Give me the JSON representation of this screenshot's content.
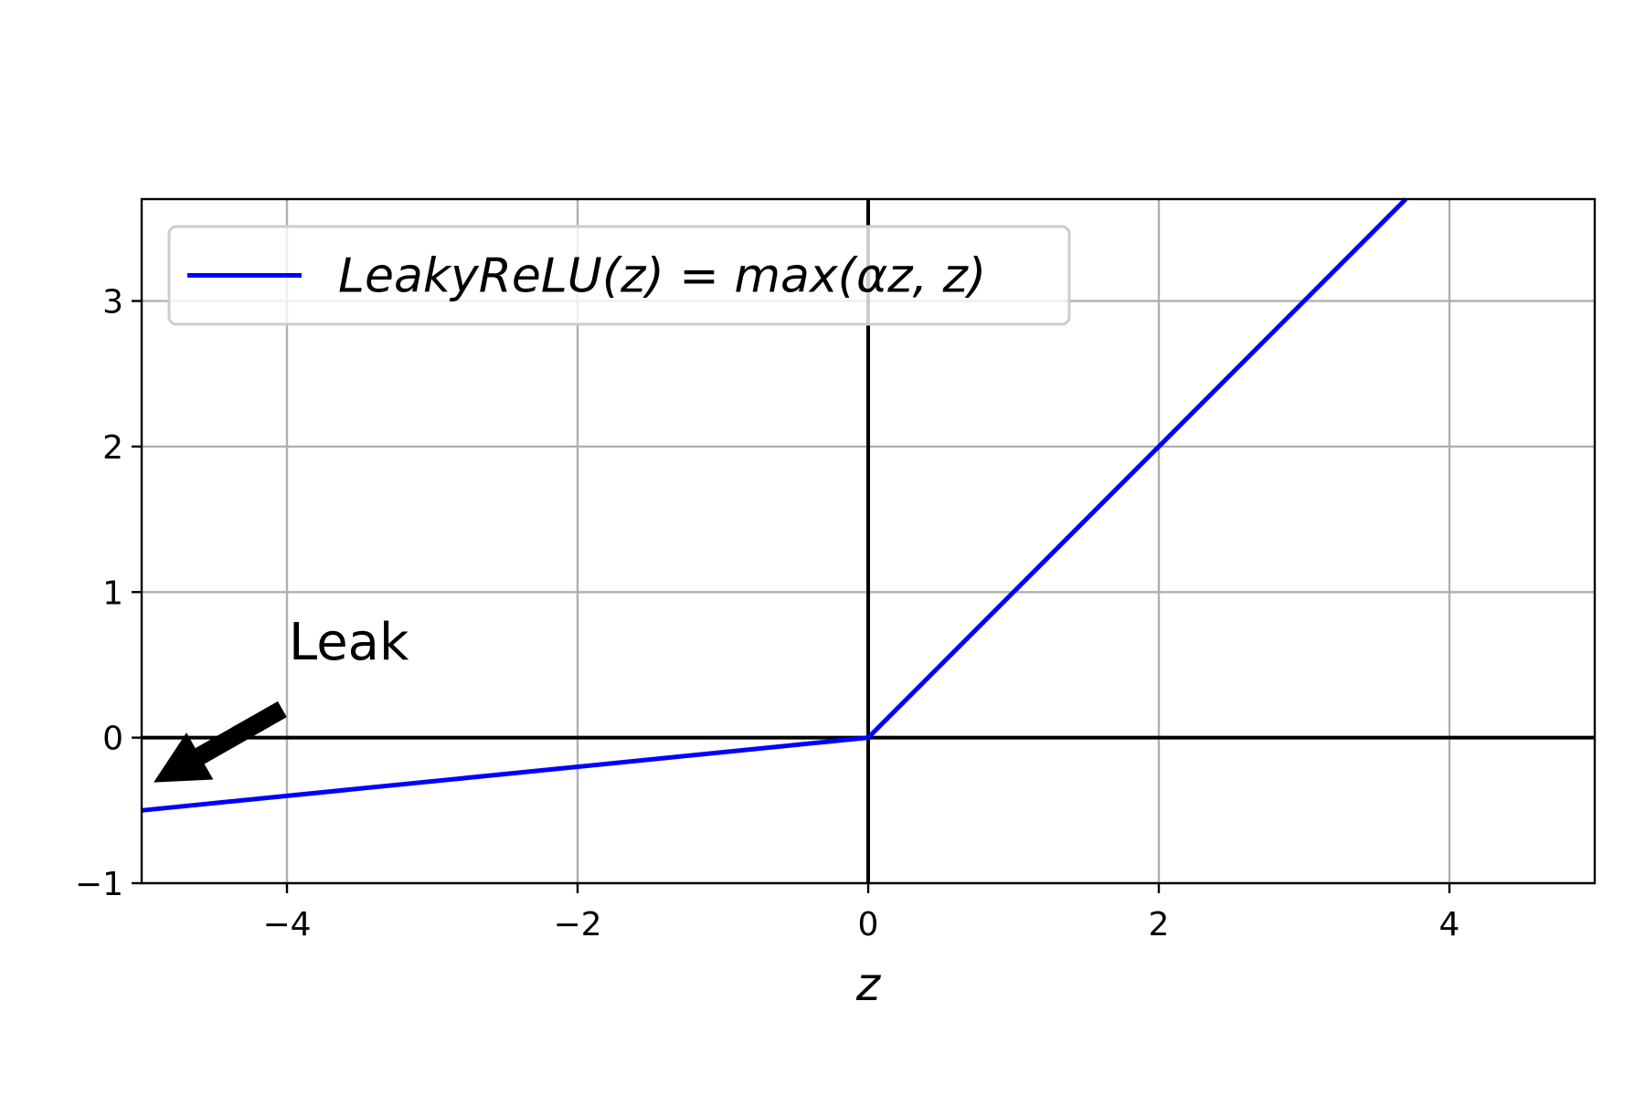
{
  "chart_data": {
    "type": "line",
    "title": "",
    "xlabel": "z",
    "ylabel": "",
    "xlim": [
      -5,
      5
    ],
    "ylim": [
      -1,
      3.7
    ],
    "xticks": [
      -4,
      -2,
      0,
      2,
      4
    ],
    "xtick_labels": [
      "−4",
      "−2",
      "0",
      "2",
      "4"
    ],
    "yticks": [
      -1,
      0,
      1,
      2,
      3
    ],
    "ytick_labels": [
      "−1",
      "0",
      "1",
      "2",
      "3"
    ],
    "grid": true,
    "axis_lines": {
      "x": 0,
      "y": 0
    },
    "series": [
      {
        "name": "LeakyReLU(z) = max(αz, z)",
        "color": "#0000ff",
        "x": [
          -5,
          0,
          3.7
        ],
        "y": [
          -0.5,
          0,
          3.7
        ]
      }
    ],
    "legend": {
      "position": "top-left"
    },
    "annotation": {
      "text": "Leak",
      "xy": [
        -5,
        -0.25
      ],
      "text_xy": [
        -4,
        0.6
      ]
    }
  }
}
